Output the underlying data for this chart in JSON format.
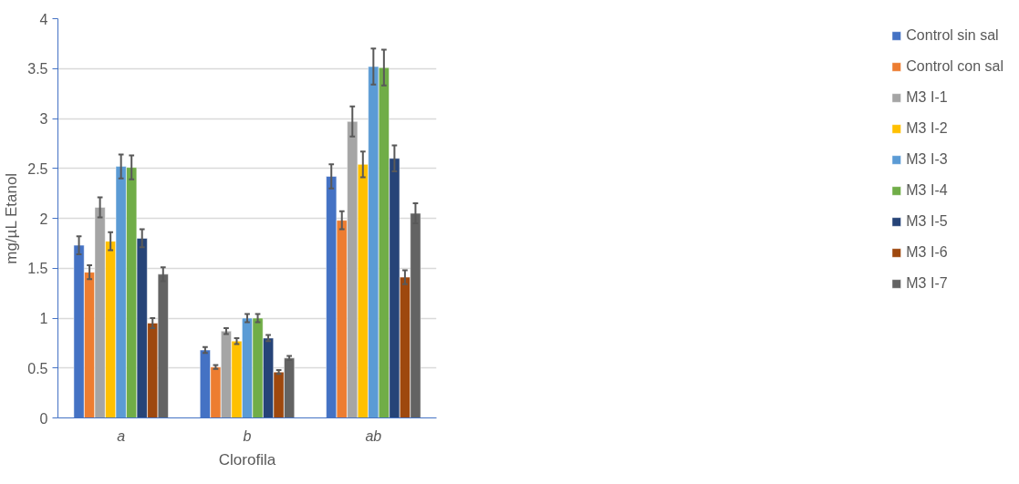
{
  "chart_data": {
    "type": "bar",
    "xlabel": "Clorofila",
    "ylabel": "mg/µL Etanol",
    "categories": [
      "a",
      "b",
      "ab"
    ],
    "ylim": [
      0,
      4
    ],
    "yticks": [
      0,
      0.5,
      1,
      1.5,
      2,
      2.5,
      3,
      3.5,
      4
    ],
    "grid": "y",
    "legend": "right",
    "series": [
      {
        "name": "Control sin sal",
        "color": "#4472c4",
        "values": [
          1.73,
          0.68,
          2.42
        ],
        "errors": [
          0.09,
          0.03,
          0.12
        ]
      },
      {
        "name": "Control con sal",
        "color": "#ed7d31",
        "values": [
          1.46,
          0.51,
          1.98
        ],
        "errors": [
          0.07,
          0.02,
          0.09
        ]
      },
      {
        "name": "M3 I-1",
        "color": "#a5a5a5",
        "values": [
          2.11,
          0.87,
          2.97
        ],
        "errors": [
          0.1,
          0.03,
          0.15
        ]
      },
      {
        "name": "M3 I-2",
        "color": "#ffc000",
        "values": [
          1.77,
          0.77,
          2.54
        ],
        "errors": [
          0.09,
          0.03,
          0.13
        ]
      },
      {
        "name": "M3 I-3",
        "color": "#5b9bd5",
        "values": [
          2.52,
          1.0,
          3.52
        ],
        "errors": [
          0.12,
          0.04,
          0.18
        ]
      },
      {
        "name": "M3 I-4",
        "color": "#70ad47",
        "values": [
          2.51,
          1.0,
          3.51
        ],
        "errors": [
          0.12,
          0.04,
          0.18
        ]
      },
      {
        "name": "M3 I-5",
        "color": "#264478",
        "values": [
          1.8,
          0.8,
          2.6
        ],
        "errors": [
          0.09,
          0.03,
          0.13
        ]
      },
      {
        "name": "M3 I-6",
        "color": "#9e480e",
        "values": [
          0.95,
          0.46,
          1.41
        ],
        "errors": [
          0.05,
          0.02,
          0.07
        ]
      },
      {
        "name": "M3 I-7",
        "color": "#636363",
        "values": [
          1.44,
          0.6,
          2.05
        ],
        "errors": [
          0.07,
          0.02,
          0.1
        ]
      }
    ]
  }
}
